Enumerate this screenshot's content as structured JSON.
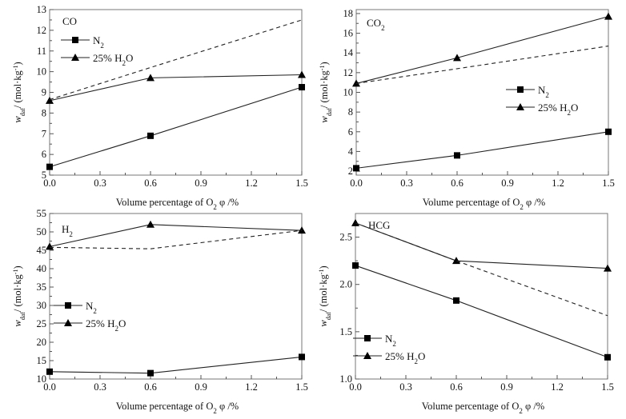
{
  "chart_data": [
    {
      "type": "line",
      "panel_label": "CO",
      "xlabel": "Volume percentage of O₂    φ /%",
      "ylabel": "w_daf / (mol·kg⁻¹)",
      "xlim": [
        0,
        1.5
      ],
      "ylim": [
        5,
        13
      ],
      "xticks": [
        "0.0",
        "0.3",
        "0.6",
        "0.9",
        "1.2",
        "1.5"
      ],
      "xtick_values": [
        0,
        0.3,
        0.6,
        0.9,
        1.2,
        1.5
      ],
      "yticks": [
        "5",
        "6",
        "7",
        "8",
        "9",
        "10",
        "11",
        "12",
        "13"
      ],
      "ytick_values": [
        5,
        6,
        7,
        8,
        9,
        10,
        11,
        12,
        13
      ],
      "x": [
        0,
        0.6,
        1.5
      ],
      "series": [
        {
          "name": "N2",
          "legend": "N₂",
          "marker": "square",
          "style": "solid",
          "values": [
            5.4,
            6.9,
            9.25
          ]
        },
        {
          "name": "25% H2O",
          "legend": "25% H₂O",
          "marker": "triangle",
          "style": "solid",
          "values": [
            8.6,
            9.7,
            9.85
          ]
        },
        {
          "name": "dashed",
          "legend": "",
          "marker": "none",
          "style": "dashed",
          "values": [
            8.65,
            10.2,
            12.5
          ]
        }
      ],
      "legend_position": "top-left",
      "grid": false
    },
    {
      "type": "line",
      "panel_label": "CO₂",
      "xlabel": "Volume percentage of O₂    φ /%",
      "ylabel": "w_daf / (mol·kg⁻¹)",
      "xlim": [
        0,
        1.5
      ],
      "ylim": [
        1.6,
        18.4
      ],
      "xticks": [
        "0.0",
        "0.3",
        "0.6",
        "0.9",
        "1.2",
        "1.5"
      ],
      "xtick_values": [
        0,
        0.3,
        0.6,
        0.9,
        1.2,
        1.5
      ],
      "yticks": [
        "2",
        "4",
        "6",
        "8",
        "10",
        "12",
        "14",
        "16",
        "18"
      ],
      "ytick_values": [
        2,
        4,
        6,
        8,
        10,
        12,
        14,
        16,
        18
      ],
      "x": [
        0,
        0.6,
        1.5
      ],
      "series": [
        {
          "name": "N2",
          "legend": "N₂",
          "marker": "square",
          "style": "solid",
          "values": [
            2.3,
            3.6,
            6.0
          ]
        },
        {
          "name": "25% H2O",
          "legend": "25% H₂O",
          "marker": "triangle",
          "style": "solid",
          "values": [
            10.9,
            13.5,
            17.7
          ]
        },
        {
          "name": "dashed",
          "legend": "",
          "marker": "none",
          "style": "dashed",
          "values": [
            10.9,
            12.4,
            14.7
          ]
        }
      ],
      "legend_position": "center-right",
      "grid": false
    },
    {
      "type": "line",
      "panel_label": "H₂",
      "xlabel": "Volume percentage of O₂    φ /%",
      "ylabel": "w_daf / (mol·kg⁻¹)",
      "xlim": [
        0,
        1.5
      ],
      "ylim": [
        10,
        55
      ],
      "xticks": [
        "0.0",
        "0.3",
        "0.6",
        "0.9",
        "1.2",
        "1.5"
      ],
      "xtick_values": [
        0,
        0.3,
        0.6,
        0.9,
        1.2,
        1.5
      ],
      "yticks": [
        "10",
        "15",
        "20",
        "25",
        "30",
        "35",
        "40",
        "45",
        "50",
        "55"
      ],
      "ytick_values": [
        10,
        15,
        20,
        25,
        30,
        35,
        40,
        45,
        50,
        55
      ],
      "x": [
        0,
        0.6,
        1.5
      ],
      "series": [
        {
          "name": "N2",
          "legend": "N₂",
          "marker": "square",
          "style": "solid",
          "values": [
            12.0,
            11.6,
            16.0
          ]
        },
        {
          "name": "25% H2O",
          "legend": "25% H₂O",
          "marker": "triangle",
          "style": "solid",
          "values": [
            46.0,
            52.0,
            50.4
          ]
        },
        {
          "name": "dashed",
          "legend": "",
          "marker": "none",
          "style": "dashed",
          "values": [
            45.8,
            45.4,
            50.4
          ]
        }
      ],
      "legend_position": "center-left",
      "grid": false
    },
    {
      "type": "line",
      "panel_label": "HCG",
      "xlabel": "Volume percentage of O₂    φ /%",
      "ylabel": "w_daf / (mol·kg⁻¹)",
      "xlim": [
        0,
        1.5
      ],
      "ylim": [
        1.0,
        2.75
      ],
      "xticks": [
        "0.0",
        "0.3",
        "0.6",
        "0.9",
        "1.2",
        "1.5"
      ],
      "xtick_values": [
        0,
        0.3,
        0.6,
        0.9,
        1.2,
        1.5
      ],
      "yticks": [
        "1.0",
        "1.5",
        "2.0",
        "2.5"
      ],
      "ytick_values": [
        1.0,
        1.5,
        2.0,
        2.5
      ],
      "x": [
        0,
        0.6,
        1.5
      ],
      "series": [
        {
          "name": "N2",
          "legend": "N₂",
          "marker": "square",
          "style": "solid",
          "values": [
            2.2,
            1.83,
            1.23
          ]
        },
        {
          "name": "25% H2O",
          "legend": "25% H₂O",
          "marker": "triangle",
          "style": "solid",
          "values": [
            2.65,
            2.25,
            2.17
          ]
        },
        {
          "name": "dashed",
          "legend": "",
          "marker": "none",
          "style": "dashed",
          "values": [
            2.65,
            2.25,
            1.67
          ]
        }
      ],
      "legend_position": "bottom-left",
      "grid": false
    }
  ]
}
